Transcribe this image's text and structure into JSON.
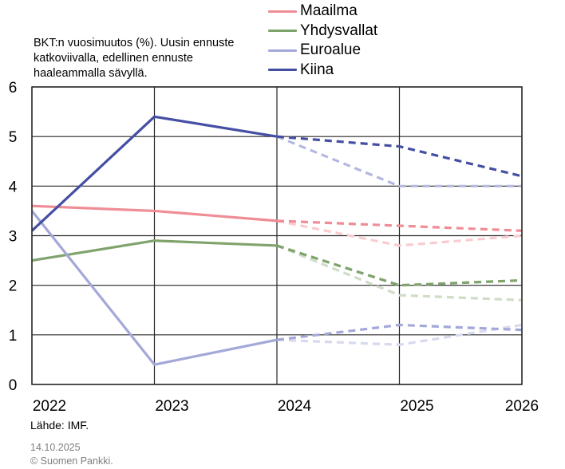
{
  "chart_data": {
    "type": "line",
    "title": "",
    "subtitle": "BKT:n vuosimuutos (%). Uusin ennuste\nkatkoviivalla, edellinen ennuste\nhaaleammalla sävyllä.",
    "xlabel": "",
    "ylabel": "",
    "x": [
      2022,
      2023,
      2024,
      2025,
      2026
    ],
    "x_tick_labels": [
      "2022",
      "2023",
      "2024",
      "2025",
      "2026"
    ],
    "y_tick_labels": [
      "0",
      "1",
      "2",
      "3",
      "4",
      "5",
      "6"
    ],
    "ylim": [
      0,
      6
    ],
    "xlim": [
      2022,
      2026
    ],
    "grid": true,
    "legend_position": "top-right",
    "forecast_start": 2024,
    "series": [
      {
        "name": "Maailma",
        "color": "#f08c96",
        "light_color": "#f8cccf",
        "values": [
          3.6,
          3.5,
          3.3,
          3.2,
          3.1
        ],
        "previous_forecast": [
          null,
          null,
          3.3,
          2.8,
          3.0
        ]
      },
      {
        "name": "Yhdysvallat",
        "color": "#7fa36c",
        "light_color": "#cfdcc6",
        "values": [
          2.5,
          2.9,
          2.8,
          2.0,
          2.1
        ],
        "previous_forecast": [
          null,
          null,
          2.8,
          1.8,
          1.7
        ]
      },
      {
        "name": "Euroalue",
        "color": "#a3a8d9",
        "light_color": "#d7d9ee",
        "values": [
          3.5,
          0.4,
          0.9,
          1.2,
          1.1
        ],
        "previous_forecast": [
          null,
          null,
          0.9,
          0.8,
          1.2
        ]
      },
      {
        "name": "Kiina",
        "color": "#444fa3",
        "light_color": "#b4b8e0",
        "values": [
          3.1,
          5.4,
          5.0,
          4.8,
          4.2
        ],
        "previous_forecast": [
          null,
          null,
          5.0,
          4.0,
          4.0
        ]
      }
    ]
  },
  "footer": {
    "source": "Lähde: IMF.",
    "date": "14.10.2025",
    "copyright": "© Suomen Pankki."
  }
}
